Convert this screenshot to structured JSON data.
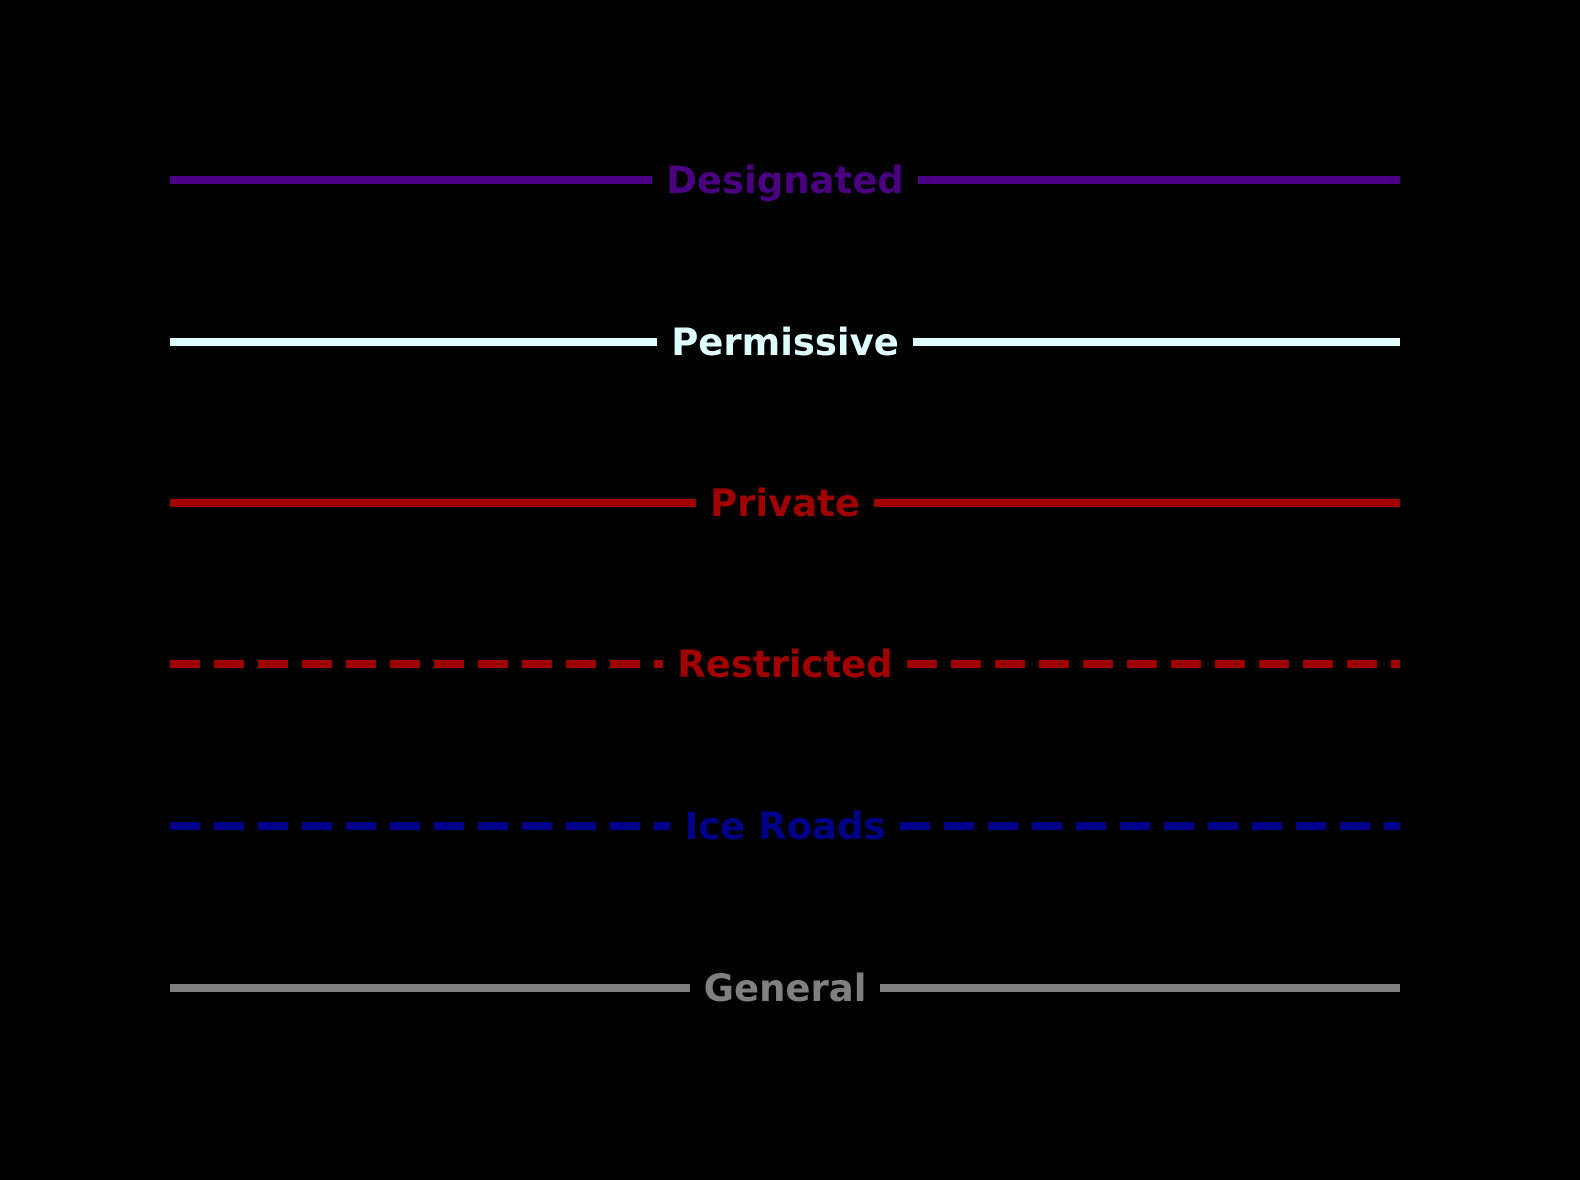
{
  "canvas": {
    "background": "#000000"
  },
  "legend": {
    "items": [
      {
        "label": "Designated",
        "color": "#4B0082",
        "style": "solid"
      },
      {
        "label": "Permissive",
        "color": "#E0FFFF",
        "style": "solid"
      },
      {
        "label": "Private",
        "color": "#A00000",
        "style": "solid"
      },
      {
        "label": "Restricted",
        "color": "#A00000",
        "style": "dashed"
      },
      {
        "label": "Ice Roads",
        "color": "#00008B",
        "style": "dashed"
      },
      {
        "label": "General",
        "color": "#808080",
        "style": "solid"
      }
    ]
  }
}
